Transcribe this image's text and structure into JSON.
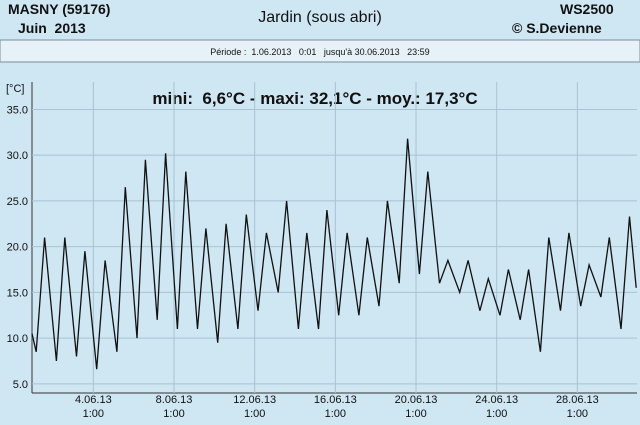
{
  "header": {
    "station": "MASNY (59176)",
    "month": "Juin  2013",
    "title": "Jardin (sous abri)",
    "device": "WS2500",
    "author": "© S.Devienne",
    "period": "Période :  1.06.2013   0:01   jusqu'à 30.06.2013   23:59"
  },
  "chart_data": {
    "type": "line",
    "y_label": "[°C]",
    "annotation": "mini:  6,6°C - maxi: 32,1°C - moy.: 17,3°C",
    "x": [
      "1.06.13 0:00",
      "1.06.13 5:00",
      "1.06.13 15:00",
      "2.06.13 5:00",
      "2.06.13 15:00",
      "3.06.13 5:00",
      "3.06.13 15:00",
      "4.06.13 5:00",
      "4.06.13 15:00",
      "5.06.13 5:00",
      "5.06.13 15:00",
      "6.06.13 5:00",
      "6.06.13 15:00",
      "7.06.13 5:00",
      "7.06.13 15:00",
      "8.06.13 5:00",
      "8.06.13 15:00",
      "9.06.13 5:00",
      "9.06.13 15:00",
      "10.06.13 5:00",
      "10.06.13 15:00",
      "11.06.13 5:00",
      "11.06.13 15:00",
      "12.06.13 5:00",
      "12.06.13 15:00",
      "13.06.13 5:00",
      "13.06.13 15:00",
      "14.06.13 5:00",
      "14.06.13 15:00",
      "15.06.13 5:00",
      "15.06.13 15:00",
      "16.06.13 5:00",
      "16.06.13 15:00",
      "17.06.13 5:00",
      "17.06.13 15:00",
      "18.06.13 5:00",
      "18.06.13 15:00",
      "19.06.13 5:00",
      "19.06.13 15:00",
      "20.06.13 5:00",
      "20.06.13 15:00",
      "21.06.13 5:00",
      "21.06.13 15:00",
      "22.06.13 5:00",
      "22.06.13 15:00",
      "23.06.13 5:00",
      "23.06.13 15:00",
      "24.06.13 5:00",
      "24.06.13 15:00",
      "25.06.13 5:00",
      "25.06.13 15:00",
      "26.06.13 5:00",
      "26.06.13 15:00",
      "27.06.13 5:00",
      "27.06.13 15:00",
      "28.06.13 5:00",
      "28.06.13 15:00",
      "29.06.13 5:00",
      "29.06.13 15:00",
      "30.06.13 5:00",
      "30.06.13 15:00",
      "30.06.13 23:00"
    ],
    "series": [
      {
        "color": "#111111",
        "values": [
          10.5,
          8.5,
          21,
          7.5,
          21,
          8,
          19.5,
          6.6,
          18.5,
          8.5,
          26.5,
          10,
          29.5,
          12,
          30.2,
          11,
          28.2,
          11,
          22,
          9.5,
          22.5,
          11,
          23.5,
          13,
          21.5,
          15,
          25,
          11,
          21.5,
          11,
          24,
          12.5,
          21.5,
          12.5,
          21,
          13.5,
          25,
          16,
          31.8,
          17,
          28.2,
          16,
          18.5,
          15,
          18.5,
          13,
          16.5,
          12.5,
          17.5,
          12,
          17.5,
          8.5,
          21,
          13,
          21.5,
          13.5,
          18,
          14.5,
          21,
          11,
          23.3,
          15.5
        ]
      }
    ],
    "xlim": [
      "1.06.13 0:00",
      "30.06.13 23:59"
    ],
    "xticks": [
      {
        "value": "4.06.13 1:00",
        "label": "4.06.13 1:00"
      },
      {
        "value": "8.06.13 1:00",
        "label": "8.06.13 1:00"
      },
      {
        "value": "12.06.13 1:00",
        "label": "12.06.13 1:00"
      },
      {
        "value": "16.06.13 1:00",
        "label": "16.06.13 1:00"
      },
      {
        "value": "20.06.13 1:00",
        "label": "20.06.13 1:00"
      },
      {
        "value": "24.06.13 1:00",
        "label": "24.06.13 1:00"
      },
      {
        "value": "28.06.13 1:00",
        "label": "28.06.13 1:00"
      }
    ],
    "ylim": [
      4,
      38
    ],
    "yticks": [
      {
        "value": 5,
        "label": "5.0"
      },
      {
        "value": 10,
        "label": "10.0"
      },
      {
        "value": 15,
        "label": "15.0"
      },
      {
        "value": 20,
        "label": "20.0"
      },
      {
        "value": 25,
        "label": "25.0"
      },
      {
        "value": 30,
        "label": "30.0"
      },
      {
        "value": 35,
        "label": "35.0"
      }
    ],
    "grid": true
  }
}
